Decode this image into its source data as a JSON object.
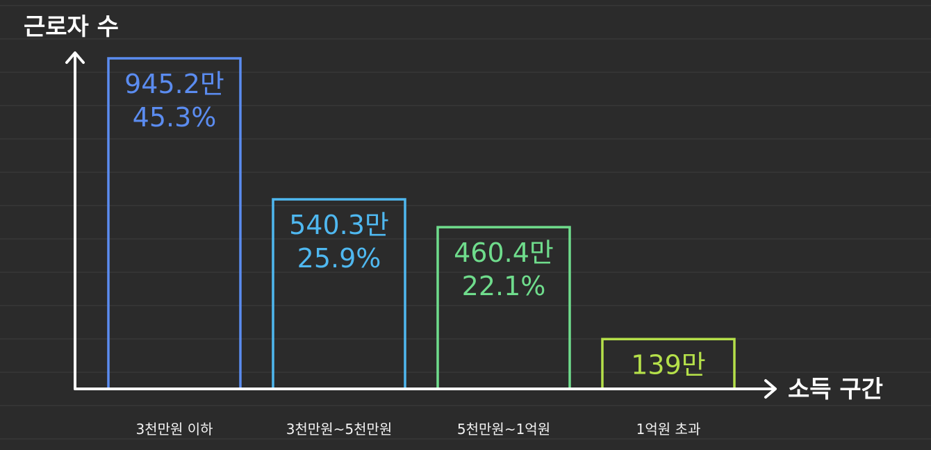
{
  "chart_data": {
    "type": "bar",
    "ylabel": "근로자 수",
    "xlabel": "소득 구간",
    "categories": [
      "3천만원 이하",
      "3천만원~5천만원",
      "5천만원~1억원",
      "1억원 초과"
    ],
    "values": [
      945.2,
      540.3,
      460.4,
      139
    ],
    "value_labels": [
      "945.2만",
      "540.3만",
      "460.4만",
      "139만"
    ],
    "percent_labels": [
      "45.3%",
      "25.9%",
      "22.1%",
      ""
    ],
    "unit": "만",
    "ylim": [
      0,
      1000
    ],
    "grid": true,
    "legend": "none"
  },
  "colors": {
    "background": "#2b2b2b",
    "grid": "#3c3c3c",
    "axis": "#ffffff",
    "bars": [
      "#5b8cf0",
      "#4fb8f0",
      "#6fdc8c",
      "#b5e04a"
    ]
  }
}
